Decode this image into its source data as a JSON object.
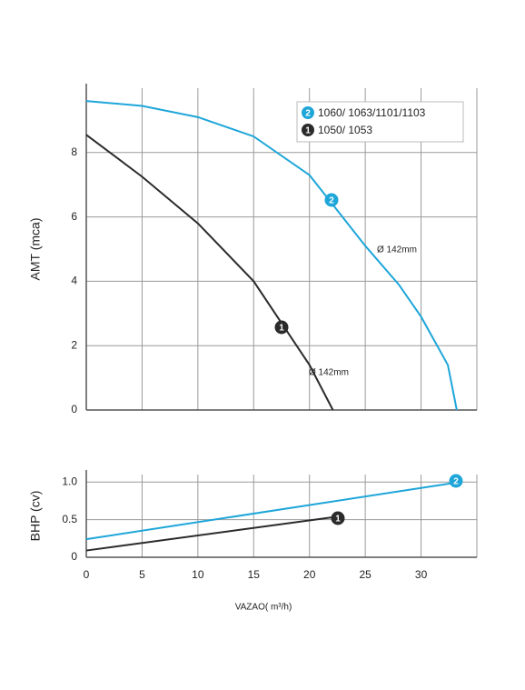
{
  "chart_data": [
    {
      "type": "line",
      "ylabel": "AMT (mca)",
      "xlim": [
        0,
        35
      ],
      "ylim": [
        0,
        10
      ],
      "yticks": [
        0,
        2,
        4,
        6,
        8
      ],
      "grid": true,
      "series": [
        {
          "name": "1060/ 1063/1101/1103",
          "badge": "2",
          "color": "#1ea6d9",
          "note": "Ø 142mm",
          "x": [
            0,
            5,
            10,
            15,
            20,
            25,
            28,
            30,
            32.4,
            33.2
          ],
          "values": [
            9.6,
            9.45,
            9.1,
            8.5,
            7.3,
            5.1,
            3.9,
            2.9,
            1.4,
            0
          ]
        },
        {
          "name": "1050/ 1053",
          "badge": "1",
          "color": "#2b2b2b",
          "note": "Ø 142mm",
          "x": [
            0,
            5,
            10,
            15,
            20,
            22.1
          ],
          "values": [
            8.55,
            7.25,
            5.8,
            4.0,
            1.4,
            0
          ]
        }
      ]
    },
    {
      "type": "line",
      "ylabel": "BHP (cv)",
      "xlabel": "VAZAO( m³/h)",
      "xlim": [
        0,
        35
      ],
      "ylim": [
        0,
        1.1
      ],
      "xticks": [
        0,
        5,
        10,
        15,
        20,
        25,
        30
      ],
      "yticks": [
        0,
        0.5,
        {
          "value": 1,
          "label": "1.0"
        }
      ],
      "grid": true,
      "series": [
        {
          "badge": "2",
          "color": "#1ea6d9",
          "x": [
            0,
            33
          ],
          "values": [
            0.24,
            0.99
          ]
        },
        {
          "badge": "1",
          "color": "#2b2b2b",
          "x": [
            0,
            22
          ],
          "values": [
            0.09,
            0.53
          ]
        }
      ]
    }
  ]
}
